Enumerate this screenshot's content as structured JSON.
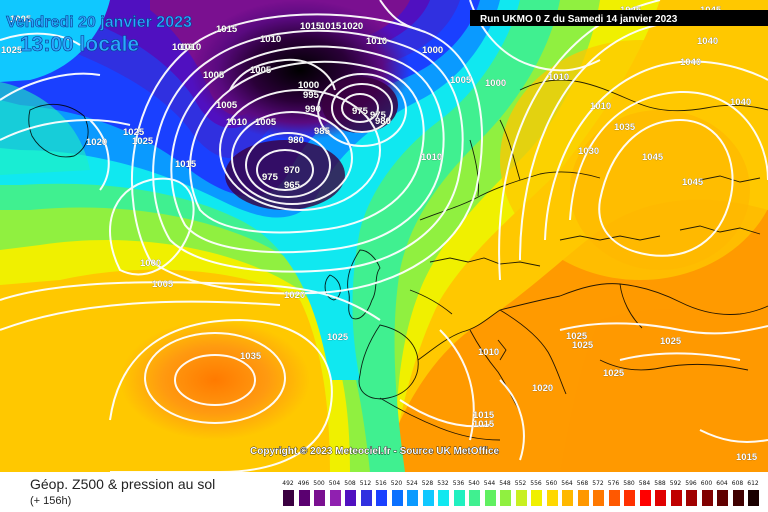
{
  "header": {
    "date_line": "Vendredi 20 janvier 2023",
    "time_line": "13:00 locale",
    "run_info": "Run UKMO 0 Z du Samedi 14 janvier 2023"
  },
  "footer": {
    "copyright": "Copyright © 2023 Meteociel.fr - Source UK MetOffice",
    "legend_title": "Géop. Z500 & pression au sol",
    "legend_subtitle": "(+ 156h)"
  },
  "isobars": [
    {
      "label": "1005"
    },
    {
      "label": "1015"
    },
    {
      "label": "1010"
    },
    {
      "label": "1005"
    },
    {
      "label": "1010"
    },
    {
      "label": "1015"
    },
    {
      "label": "1015"
    },
    {
      "label": "1020"
    },
    {
      "label": "1010"
    },
    {
      "label": "1000"
    },
    {
      "label": "1005"
    },
    {
      "label": "1000"
    },
    {
      "label": "1010"
    },
    {
      "label": "1045"
    },
    {
      "label": "1040"
    },
    {
      "label": "1045"
    },
    {
      "label": "1040"
    },
    {
      "label": "1010"
    },
    {
      "label": "1035"
    },
    {
      "label": "1040"
    },
    {
      "label": "1045"
    },
    {
      "label": "1030"
    },
    {
      "label": "1045"
    },
    {
      "label": "1005"
    },
    {
      "label": "1000"
    },
    {
      "label": "995"
    },
    {
      "label": "990"
    },
    {
      "label": "975"
    },
    {
      "label": "975"
    },
    {
      "label": "980"
    },
    {
      "label": "985"
    },
    {
      "label": "980"
    },
    {
      "label": "970"
    },
    {
      "label": "975"
    },
    {
      "label": "965"
    },
    {
      "label": "1005"
    },
    {
      "label": "1010"
    },
    {
      "label": "1005"
    },
    {
      "label": "1010"
    },
    {
      "label": "1010"
    },
    {
      "label": "1025"
    },
    {
      "label": "1025"
    },
    {
      "label": "1020"
    },
    {
      "label": "1015"
    },
    {
      "label": "1000"
    },
    {
      "label": "1005"
    },
    {
      "label": "1020"
    },
    {
      "label": "1025"
    },
    {
      "label": "1035"
    },
    {
      "label": "1025"
    },
    {
      "label": "1025"
    },
    {
      "label": "1025"
    },
    {
      "label": "1020"
    },
    {
      "label": "1025"
    },
    {
      "label": "1010"
    },
    {
      "label": "1015"
    },
    {
      "label": "1015"
    },
    {
      "label": "1015"
    },
    {
      "label": "1025"
    }
  ],
  "scale": {
    "values": [
      "492",
      "496",
      "500",
      "504",
      "508",
      "512",
      "516",
      "520",
      "524",
      "528",
      "532",
      "536",
      "540",
      "544",
      "548",
      "552",
      "556",
      "560",
      "564",
      "568",
      "572",
      "576",
      "580",
      "584",
      "588",
      "592",
      "596",
      "600",
      "604",
      "608",
      "612"
    ],
    "colors": [
      "#3a0040",
      "#5a0070",
      "#7a1090",
      "#9020b0",
      "#5010c0",
      "#3030e0",
      "#1a40ff",
      "#0a70ff",
      "#0a9aff",
      "#10c8ff",
      "#10e8f0",
      "#20f0c0",
      "#40f090",
      "#60f060",
      "#90f040",
      "#c8f020",
      "#f0f000",
      "#ffd800",
      "#ffb800",
      "#ff9800",
      "#ff7800",
      "#ff5800",
      "#ff3000",
      "#ff0000",
      "#e00000",
      "#c00000",
      "#a00000",
      "#800000",
      "#600000",
      "#400000",
      "#1a0000"
    ]
  }
}
